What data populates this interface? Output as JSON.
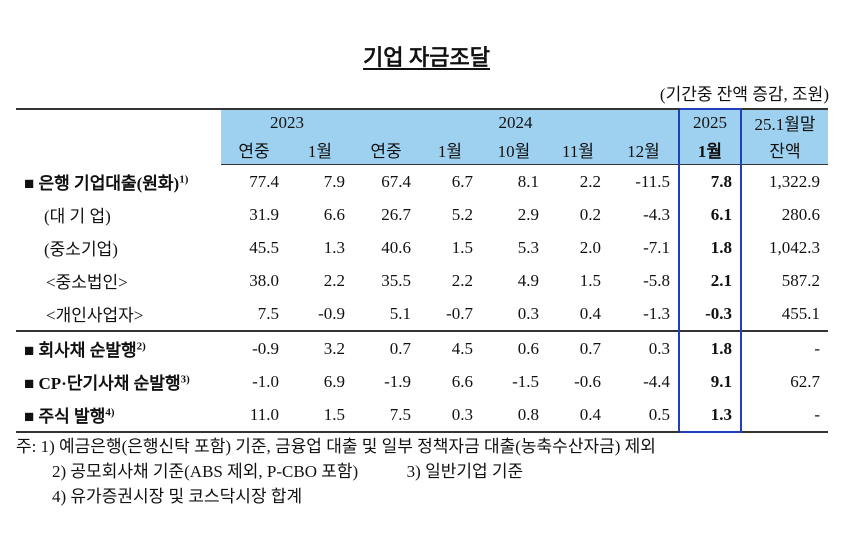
{
  "title": "기업 자금조달",
  "unit": "(기간중 잔액 증감, 조원)",
  "header": {
    "year_2023": "2023",
    "year_2024": "2024",
    "year_2025": "2025",
    "balance_top": "25.1월말",
    "balance_bottom": "잔액",
    "cols": [
      "연중",
      "1월",
      "연중",
      "1월",
      "10월",
      "11월",
      "12월",
      "1월"
    ]
  },
  "rows": [
    {
      "label": "■ 은행 기업대출(원화)",
      "note": "1)",
      "values": [
        "77.4",
        "7.9",
        "67.4",
        "6.7",
        "8.1",
        "2.2",
        "-11.5",
        "7.8",
        "1,322.9"
      ]
    },
    {
      "label": "(대 기 업)",
      "note": "",
      "values": [
        "31.9",
        "6.6",
        "26.7",
        "5.2",
        "2.9",
        "0.2",
        "-4.3",
        "6.1",
        "280.6"
      ]
    },
    {
      "label": "(중소기업)",
      "note": "",
      "values": [
        "45.5",
        "1.3",
        "40.6",
        "1.5",
        "5.3",
        "2.0",
        "-7.1",
        "1.8",
        "1,042.3"
      ]
    },
    {
      "label": "<중소법인>",
      "note": "",
      "values": [
        "38.0",
        "2.2",
        "35.5",
        "2.2",
        "4.9",
        "1.5",
        "-5.8",
        "2.1",
        "587.2"
      ]
    },
    {
      "label": "<개인사업자>",
      "note": "",
      "values": [
        "7.5",
        "-0.9",
        "5.1",
        "-0.7",
        "0.3",
        "0.4",
        "-1.3",
        "-0.3",
        "455.1"
      ]
    },
    {
      "label": "■ 회사채 순발행",
      "note": "2)",
      "values": [
        "-0.9",
        "3.2",
        "0.7",
        "4.5",
        "0.6",
        "0.7",
        "0.3",
        "1.8",
        "-"
      ]
    },
    {
      "label": "■ CP·단기사채 순발행",
      "note": "3)",
      "values": [
        "-1.0",
        "6.9",
        "-1.9",
        "6.6",
        "-1.5",
        "-0.6",
        "-4.4",
        "9.1",
        "62.7"
      ]
    },
    {
      "label": "■ 주식 발행",
      "note": "4)",
      "values": [
        "11.0",
        "1.5",
        "7.5",
        "0.3",
        "0.8",
        "0.4",
        "0.5",
        "1.3",
        "-"
      ]
    }
  ],
  "notes": {
    "n1": "주: 1) 예금은행(은행신탁 포함) 기준, 금융업 대출 및 일부 정책자금 대출(농축수산자금) 제외",
    "n2": "2) 공모회사채 기준(ABS 제외, P-CBO 포함)",
    "n3": "3) 일반기업 기준",
    "n4": "4) 유가증권시장 및 코스닥시장 합계"
  }
}
